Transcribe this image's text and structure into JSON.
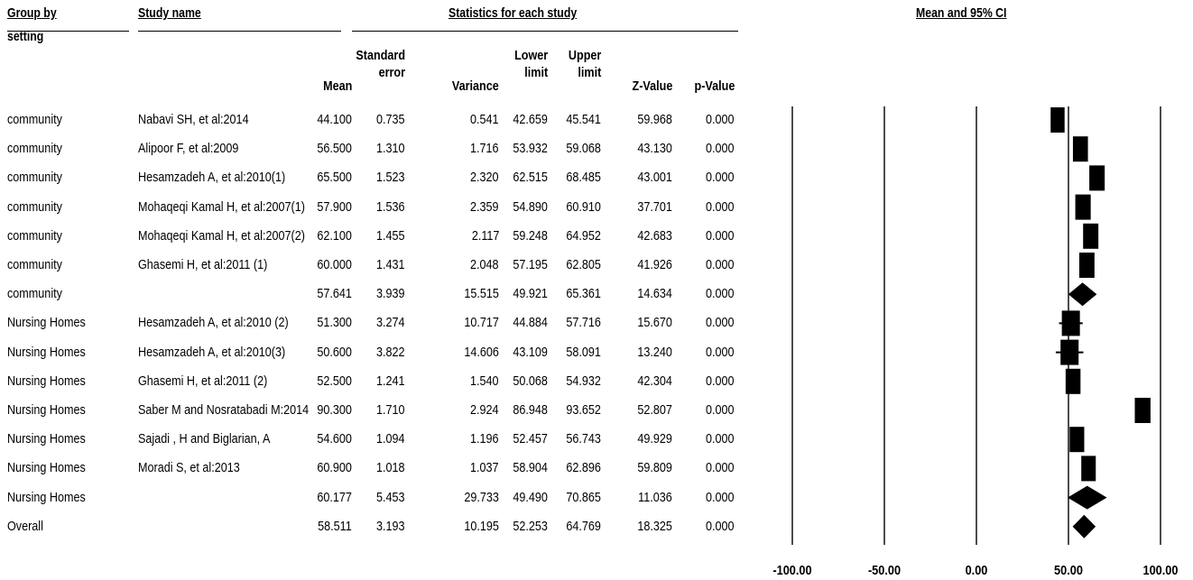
{
  "headers": {
    "group_by_line1": "Group by",
    "group_by_line2": "setting",
    "study_name": "Study name",
    "statistics": "Statistics for each study",
    "mean_ci": "Mean and 95% CI"
  },
  "columns": {
    "mean": "Mean",
    "se_line1": "Standard",
    "se_line2": "error",
    "variance": "Variance",
    "lower_line1": "Lower",
    "lower_line2": "limit",
    "upper_line1": "Upper",
    "upper_line2": "limit",
    "z": "Z-Value",
    "p": "p-Value"
  },
  "rows": [
    {
      "group": "community",
      "study": "Nabavi SH, et al:2014",
      "mean": "44.100",
      "se": "0.735",
      "variance": "0.541",
      "lower": "42.659",
      "upper": "45.541",
      "z": "59.968",
      "p": "0.000"
    },
    {
      "group": "community",
      "study": "Alipoor F, et al:2009",
      "mean": "56.500",
      "se": "1.310",
      "variance": "1.716",
      "lower": "53.932",
      "upper": "59.068",
      "z": "43.130",
      "p": "0.000"
    },
    {
      "group": "community",
      "study": "Hesamzadeh A, et al:2010(1)",
      "mean": "65.500",
      "se": "1.523",
      "variance": "2.320",
      "lower": "62.515",
      "upper": "68.485",
      "z": "43.001",
      "p": "0.000"
    },
    {
      "group": "community",
      "study": "Mohaqeqi Kamal H, et al:2007(1)",
      "mean": "57.900",
      "se": "1.536",
      "variance": "2.359",
      "lower": "54.890",
      "upper": "60.910",
      "z": "37.701",
      "p": "0.000"
    },
    {
      "group": "community",
      "study": "Mohaqeqi Kamal H, et al:2007(2)",
      "mean": "62.100",
      "se": "1.455",
      "variance": "2.117",
      "lower": "59.248",
      "upper": "64.952",
      "z": "42.683",
      "p": "0.000"
    },
    {
      "group": "community",
      "study": "Ghasemi H, et al:2011 (1)",
      "mean": "60.000",
      "se": "1.431",
      "variance": "2.048",
      "lower": "57.195",
      "upper": "62.805",
      "z": "41.926",
      "p": "0.000"
    },
    {
      "group": "community",
      "study": "",
      "mean": "57.641",
      "se": "3.939",
      "variance": "15.515",
      "lower": "49.921",
      "upper": "65.361",
      "z": "14.634",
      "p": "0.000"
    },
    {
      "group": "Nursing Homes",
      "study": "Hesamzadeh A, et al:2010 (2)",
      "mean": "51.300",
      "se": "3.274",
      "variance": "10.717",
      "lower": "44.884",
      "upper": "57.716",
      "z": "15.670",
      "p": "0.000"
    },
    {
      "group": "Nursing Homes",
      "study": "Hesamzadeh A, et al:2010(3)",
      "mean": "50.600",
      "se": "3.822",
      "variance": "14.606",
      "lower": "43.109",
      "upper": "58.091",
      "z": "13.240",
      "p": "0.000"
    },
    {
      "group": "Nursing Homes",
      "study": "Ghasemi H, et al:2011 (2)",
      "mean": "52.500",
      "se": "1.241",
      "variance": "1.540",
      "lower": "50.068",
      "upper": "54.932",
      "z": "42.304",
      "p": "0.000"
    },
    {
      "group": "Nursing Homes",
      "study": "Saber M and Nosratabadi M:2014",
      "mean": "90.300",
      "se": "1.710",
      "variance": "2.924",
      "lower": "86.948",
      "upper": "93.652",
      "z": "52.807",
      "p": "0.000"
    },
    {
      "group": "Nursing Homes",
      "study": "Sajadi , H and Biglarian, A",
      "mean": "54.600",
      "se": "1.094",
      "variance": "1.196",
      "lower": "52.457",
      "upper": "56.743",
      "z": "49.929",
      "p": "0.000"
    },
    {
      "group": "Nursing Homes",
      "study": "Moradi S, et al:2013",
      "mean": "60.900",
      "se": "1.018",
      "variance": "1.037",
      "lower": "58.904",
      "upper": "62.896",
      "z": "59.809",
      "p": "0.000"
    },
    {
      "group": "Nursing Homes",
      "study": "",
      "mean": "60.177",
      "se": "5.453",
      "variance": "29.733",
      "lower": "49.490",
      "upper": "70.865",
      "z": "11.036",
      "p": "0.000"
    },
    {
      "group": "Overall",
      "study": "",
      "mean": "58.511",
      "se": "3.193",
      "variance": "10.195",
      "lower": "52.253",
      "upper": "64.769",
      "z": "18.325",
      "p": "0.000"
    }
  ],
  "chart_data": {
    "type": "forest",
    "title": "Mean and 95% CI",
    "xlim": [
      -100,
      100
    ],
    "ticks": [
      -100,
      -50,
      0,
      50,
      100
    ],
    "tick_labels": [
      "-100.00",
      "-50.00",
      "0.00",
      "50.00",
      "100.00"
    ],
    "reference_line": 50,
    "gridlines": [
      -100,
      -50,
      0,
      100
    ],
    "points": [
      {
        "label": "Nabavi SH, et al:2014",
        "kind": "study",
        "mean": 44.1,
        "lower": 42.659,
        "upper": 45.541
      },
      {
        "label": "Alipoor F, et al:2009",
        "kind": "study",
        "mean": 56.5,
        "lower": 53.932,
        "upper": 59.068
      },
      {
        "label": "Hesamzadeh A, et al:2010(1)",
        "kind": "study",
        "mean": 65.5,
        "lower": 62.515,
        "upper": 68.485
      },
      {
        "label": "Mohaqeqi Kamal H, et al:2007(1)",
        "kind": "study",
        "mean": 57.9,
        "lower": 54.89,
        "upper": 60.91
      },
      {
        "label": "Mohaqeqi Kamal H, et al:2007(2)",
        "kind": "study",
        "mean": 62.1,
        "lower": 59.248,
        "upper": 64.952
      },
      {
        "label": "Ghasemi H, et al:2011 (1)",
        "kind": "study",
        "mean": 60.0,
        "lower": 57.195,
        "upper": 62.805
      },
      {
        "label": "community",
        "kind": "summary",
        "mean": 57.641,
        "lower": 49.921,
        "upper": 65.361
      },
      {
        "label": "Hesamzadeh A, et al:2010 (2)",
        "kind": "study",
        "mean": 51.3,
        "lower": 44.884,
        "upper": 57.716
      },
      {
        "label": "Hesamzadeh A, et al:2010(3)",
        "kind": "study",
        "mean": 50.6,
        "lower": 43.109,
        "upper": 58.091
      },
      {
        "label": "Ghasemi H, et al:2011 (2)",
        "kind": "study",
        "mean": 52.5,
        "lower": 50.068,
        "upper": 54.932
      },
      {
        "label": "Saber M and Nosratabadi M:2014",
        "kind": "study",
        "mean": 90.3,
        "lower": 86.948,
        "upper": 93.652
      },
      {
        "label": "Sajadi , H and Biglarian, A",
        "kind": "study",
        "mean": 54.6,
        "lower": 52.457,
        "upper": 56.743
      },
      {
        "label": "Moradi S, et al:2013",
        "kind": "study",
        "mean": 60.9,
        "lower": 58.904,
        "upper": 62.896
      },
      {
        "label": "Nursing Homes",
        "kind": "summary",
        "mean": 60.177,
        "lower": 49.49,
        "upper": 70.865
      },
      {
        "label": "Overall",
        "kind": "summary",
        "mean": 58.511,
        "lower": 52.253,
        "upper": 64.769
      }
    ]
  }
}
